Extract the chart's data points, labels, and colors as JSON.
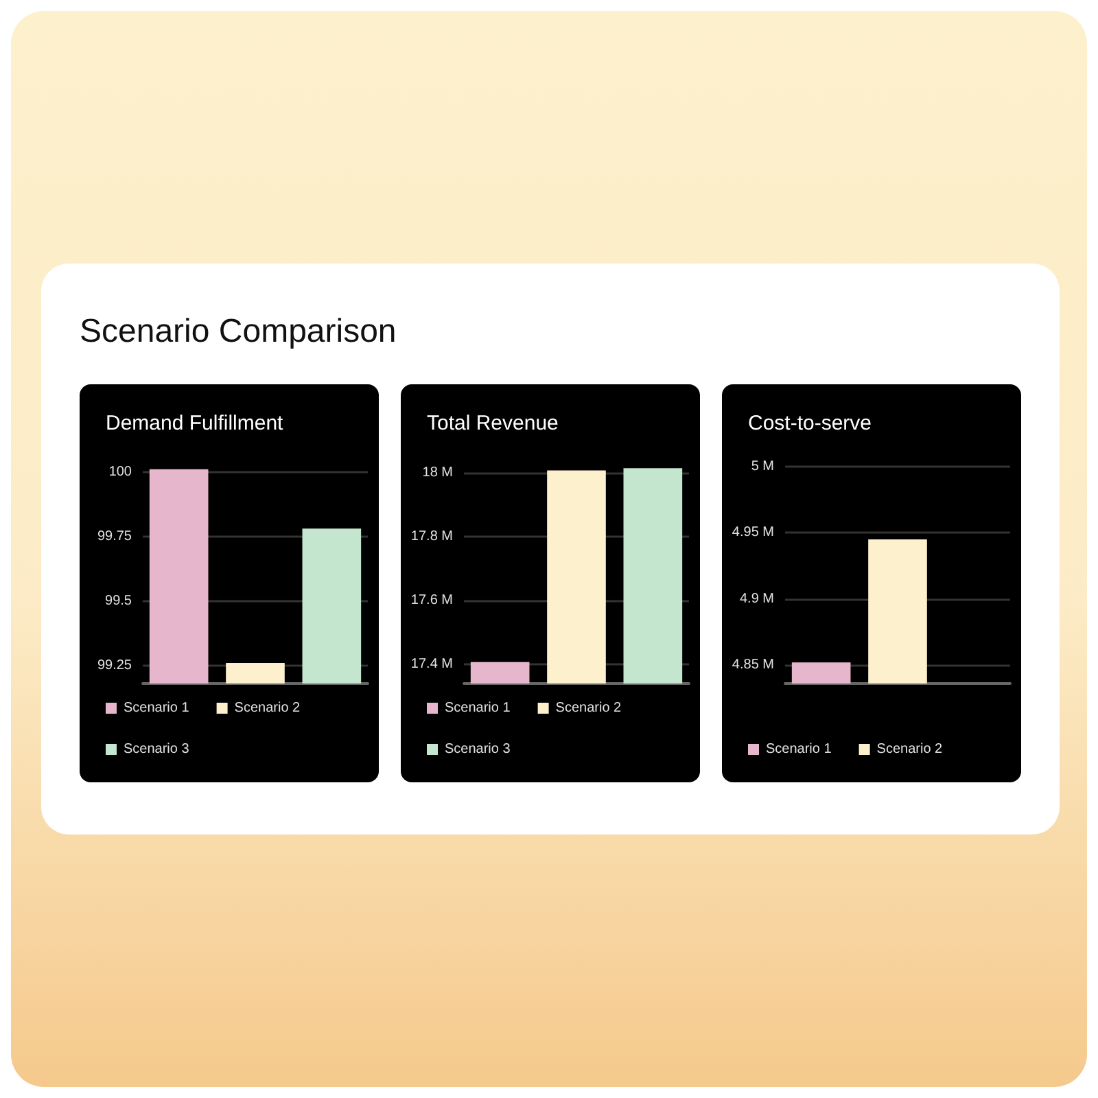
{
  "chart_data": [
    {
      "type": "other",
      "title": "Scenario Comparison"
    },
    {
      "type": "bar",
      "title": "Demand Fulfillment",
      "categories": [
        null
      ],
      "series": [
        {
          "name": "Scenario 1",
          "color": "#e6b6cc",
          "values": [
            100.01
          ]
        },
        {
          "name": "Scenario 2",
          "color": "#fdf0cd",
          "values": [
            99.26
          ]
        },
        {
          "name": "Scenario 3",
          "color": "#c4e6cf",
          "values": [
            99.78
          ]
        }
      ],
      "ylim": [
        99.18,
        100.02
      ],
      "yticks": [
        99.25,
        99.5,
        99.75,
        100
      ],
      "grid": "y",
      "legend": "bottom"
    },
    {
      "type": "bar",
      "title": "Total Revenue",
      "categories": [
        null
      ],
      "series": [
        {
          "name": "Scenario 1",
          "color": "#e6b6cc",
          "values": [
            17.407
          ]
        },
        {
          "name": "Scenario 2",
          "color": "#fdf0cd",
          "values": [
            18.008
          ]
        },
        {
          "name": "Scenario 3",
          "color": "#c4e6cf",
          "values": [
            18.015
          ]
        }
      ],
      "ylim": [
        17.34,
        18.02
      ],
      "yticks": [
        {
          "value": 17.4,
          "label": "17.4 M"
        },
        {
          "value": 17.6,
          "label": "17.6 M"
        },
        {
          "value": 17.8,
          "label": "17.8 M"
        },
        {
          "value": 18,
          "label": "18 M"
        }
      ],
      "grid": "y",
      "legend": "bottom"
    },
    {
      "type": "bar",
      "title": "Cost-to-serve",
      "categories": [
        null
      ],
      "series": [
        {
          "name": "Scenario 1",
          "color": "#e6b6cc",
          "values": [
            4.852
          ]
        },
        {
          "name": "Scenario 2",
          "color": "#fdf0cd",
          "values": [
            4.945
          ]
        },
        {
          "color": "#c4e6cf",
          "values": [
            null
          ]
        }
      ],
      "ylim": [
        4.836,
        5.0
      ],
      "yticks": [
        {
          "value": 4.85,
          "label": "4.85 M"
        },
        {
          "value": 4.9,
          "label": "4.9 M"
        },
        {
          "value": 4.95,
          "label": "4.95 M"
        },
        {
          "value": 5,
          "label": "5 M"
        }
      ],
      "grid": "y",
      "legend": "bottom"
    }
  ]
}
